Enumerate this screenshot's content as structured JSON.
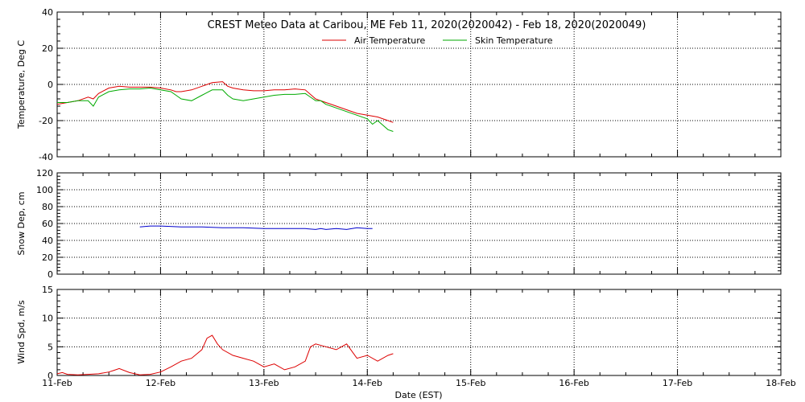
{
  "chart_data": {
    "type": "line",
    "title": "CREST Meteo Data at Caribou, ME   Feb 11, 2020(2020042) - Feb 18, 2020(2020049)",
    "xlabel": "Date (EST)",
    "x_ticks": [
      "11-Feb",
      "12-Feb",
      "13-Feb",
      "14-Feb",
      "15-Feb",
      "16-Feb",
      "17-Feb",
      "18-Feb"
    ],
    "xlim": [
      0,
      7
    ],
    "grid": true,
    "panels": [
      {
        "ylabel": "Temperature, Deg C",
        "ylim": [
          -40,
          40
        ],
        "y_ticks": [
          40,
          20,
          0,
          -20,
          -40
        ],
        "legend": "top-center",
        "series": [
          {
            "name": "Air Temperature",
            "color": "#dd0000",
            "x": [
              0,
              0.1,
              0.2,
              0.3,
              0.35,
              0.4,
              0.5,
              0.6,
              0.7,
              0.8,
              0.9,
              1.0,
              1.1,
              1.15,
              1.2,
              1.3,
              1.4,
              1.5,
              1.6,
              1.65,
              1.7,
              1.8,
              1.9,
              2.0,
              2.1,
              2.2,
              2.3,
              2.4,
              2.5,
              2.55,
              2.6,
              2.7,
              2.8,
              2.9,
              3.0,
              3.1,
              3.2,
              3.25
            ],
            "y": [
              -11,
              -10,
              -9,
              -7,
              -8,
              -5,
              -2,
              -1,
              -1.5,
              -1.5,
              -1.5,
              -2,
              -3,
              -4,
              -4,
              -3,
              -1,
              1,
              1.5,
              -1,
              -2,
              -3,
              -3.5,
              -3.5,
              -3,
              -3,
              -2.5,
              -3,
              -8,
              -9,
              -10,
              -12,
              -14,
              -16,
              -17,
              -18,
              -20,
              -21
            ]
          },
          {
            "name": "Skin Temperature",
            "color": "#00aa00",
            "x": [
              0,
              0.1,
              0.2,
              0.3,
              0.35,
              0.4,
              0.5,
              0.6,
              0.7,
              0.8,
              0.9,
              1.0,
              1.1,
              1.15,
              1.2,
              1.3,
              1.4,
              1.5,
              1.6,
              1.65,
              1.7,
              1.8,
              1.9,
              2.0,
              2.1,
              2.2,
              2.3,
              2.4,
              2.5,
              2.55,
              2.6,
              2.7,
              2.8,
              2.9,
              3.0,
              3.05,
              3.1,
              3.2,
              3.25
            ],
            "y": [
              -10,
              -10,
              -9,
              -9,
              -12,
              -7,
              -4,
              -3,
              -2.5,
              -2.5,
              -2,
              -3,
              -4,
              -6,
              -8,
              -9,
              -6,
              -3,
              -3,
              -6,
              -8,
              -9,
              -8,
              -7,
              -6,
              -5.5,
              -5.5,
              -5,
              -9,
              -9,
              -11,
              -13,
              -15,
              -17,
              -19,
              -22,
              -20,
              -25,
              -26
            ]
          }
        ]
      },
      {
        "ylabel": "Snow Dep, cm",
        "ylim": [
          0,
          120
        ],
        "y_ticks": [
          120,
          100,
          80,
          60,
          40,
          20,
          0
        ],
        "series": [
          {
            "name": "",
            "color": "#0000cc",
            "x": [
              0.8,
              0.9,
              1.0,
              1.2,
              1.4,
              1.6,
              1.8,
              2.0,
              2.2,
              2.4,
              2.5,
              2.55,
              2.6,
              2.7,
              2.8,
              2.9,
              3.0,
              3.05
            ],
            "y": [
              56,
              57,
              57,
              56,
              56,
              55,
              55,
              54,
              54,
              54,
              53,
              54,
              53,
              54,
              53,
              55,
              54,
              54
            ]
          }
        ]
      },
      {
        "ylabel": "Wind Spd, m/s",
        "ylim": [
          0,
          15
        ],
        "y_ticks": [
          15,
          10,
          5,
          0
        ],
        "series": [
          {
            "name": "",
            "color": "#dd0000",
            "x": [
              0,
              0.05,
              0.1,
              0.2,
              0.3,
              0.4,
              0.5,
              0.55,
              0.6,
              0.7,
              0.8,
              0.9,
              1.0,
              1.1,
              1.2,
              1.3,
              1.4,
              1.45,
              1.5,
              1.55,
              1.6,
              1.7,
              1.8,
              1.9,
              2.0,
              2.1,
              2.2,
              2.3,
              2.4,
              2.45,
              2.5,
              2.6,
              2.7,
              2.8,
              2.9,
              3.0,
              3.1,
              3.2,
              3.25
            ],
            "y": [
              0.3,
              0.5,
              0.2,
              0.1,
              0.2,
              0.3,
              0.6,
              0.9,
              1.2,
              0.5,
              0.1,
              0.2,
              0.6,
              1.5,
              2.5,
              3.0,
              4.5,
              6.5,
              7.0,
              5.5,
              4.5,
              3.5,
              3.0,
              2.5,
              1.5,
              2.0,
              1.0,
              1.5,
              2.5,
              5.0,
              5.5,
              5.0,
              4.5,
              5.5,
              3.0,
              3.5,
              2.5,
              3.5,
              3.8
            ]
          }
        ]
      }
    ]
  }
}
